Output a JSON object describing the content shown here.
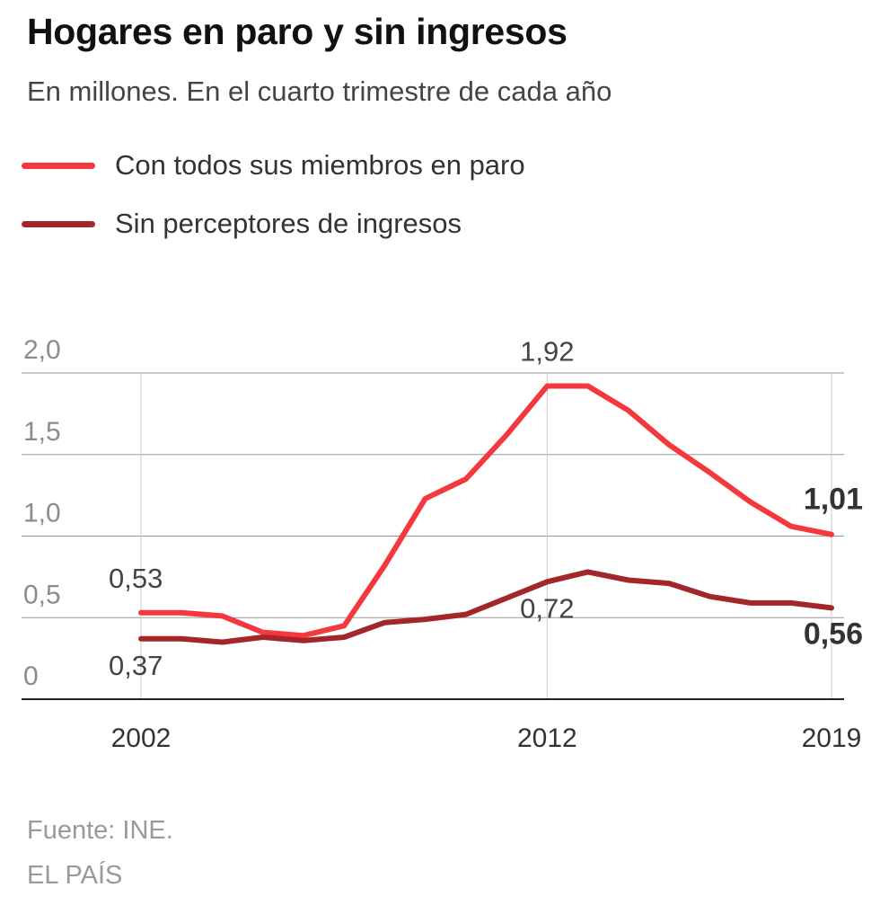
{
  "title": "Hogares en paro y sin ingresos",
  "subtitle": "En millones. En el cuarto trimestre de cada año",
  "legend": [
    {
      "label": "Con todos sus miembros en paro",
      "color": "#f5383d"
    },
    {
      "label": "Sin perceptores de ingresos",
      "color": "#a3272a"
    }
  ],
  "footer": {
    "source": "Fuente: INE.",
    "brand": "EL PAÍS"
  },
  "chart_data": {
    "type": "line",
    "title": "Hogares en paro y sin ingresos",
    "xlabel": "",
    "ylabel": "En millones",
    "x": [
      2002,
      2003,
      2004,
      2005,
      2006,
      2007,
      2008,
      2009,
      2010,
      2011,
      2012,
      2013,
      2014,
      2015,
      2016,
      2017,
      2018,
      2019
    ],
    "xlim": [
      2002,
      2019
    ],
    "ylim": [
      0,
      2.0
    ],
    "yticks": [
      0,
      0.5,
      1.0,
      1.5,
      2.0
    ],
    "ytick_labels": [
      "0",
      "0,5",
      "1,0",
      "1,5",
      "2,0"
    ],
    "xticks": [
      2002,
      2012,
      2019
    ],
    "xtick_labels": [
      "2002",
      "2012",
      "2019"
    ],
    "grid": true,
    "series": [
      {
        "name": "Con todos sus miembros en paro",
        "color": "#f5383d",
        "values": [
          0.53,
          0.53,
          0.51,
          0.41,
          0.39,
          0.45,
          0.82,
          1.23,
          1.35,
          1.62,
          1.92,
          1.92,
          1.77,
          1.56,
          1.39,
          1.21,
          1.06,
          1.01
        ]
      },
      {
        "name": "Sin perceptores de ingresos",
        "color": "#a3272a",
        "values": [
          0.37,
          0.37,
          0.35,
          0.38,
          0.36,
          0.38,
          0.47,
          0.49,
          0.52,
          0.62,
          0.72,
          0.78,
          0.73,
          0.71,
          0.63,
          0.59,
          0.59,
          0.56
        ]
      }
    ],
    "annotations": [
      {
        "text": "0,53",
        "series": 0,
        "x": 2002,
        "position": "above",
        "bold": false
      },
      {
        "text": "0,37",
        "series": 1,
        "x": 2002,
        "position": "below",
        "bold": false
      },
      {
        "text": "1,92",
        "series": 0,
        "x": 2012,
        "position": "above",
        "bold": false
      },
      {
        "text": "0,72",
        "series": 1,
        "x": 2012,
        "position": "below",
        "bold": false
      },
      {
        "text": "1,01",
        "series": 0,
        "x": 2019,
        "position": "above",
        "bold": true
      },
      {
        "text": "0,56",
        "series": 1,
        "x": 2019,
        "position": "below",
        "bold": true
      }
    ]
  }
}
